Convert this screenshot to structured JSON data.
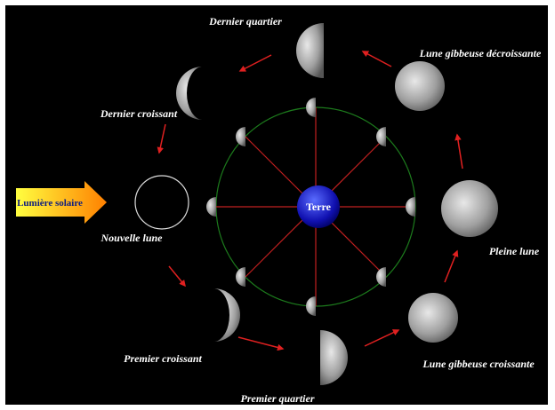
{
  "sun_label": "Lumière solaire",
  "earth_label": "Terre",
  "phases": [
    {
      "label": "Nouvelle lune"
    },
    {
      "label": "Premier croissant"
    },
    {
      "label": "Premier quartier"
    },
    {
      "label": "Lune gibbeuse croissante"
    },
    {
      "label": "Pleine lune"
    },
    {
      "label": "Lune gibbeuse décroissante"
    },
    {
      "label": "Dernier quartier"
    },
    {
      "label": "Dernier croissant"
    }
  ]
}
